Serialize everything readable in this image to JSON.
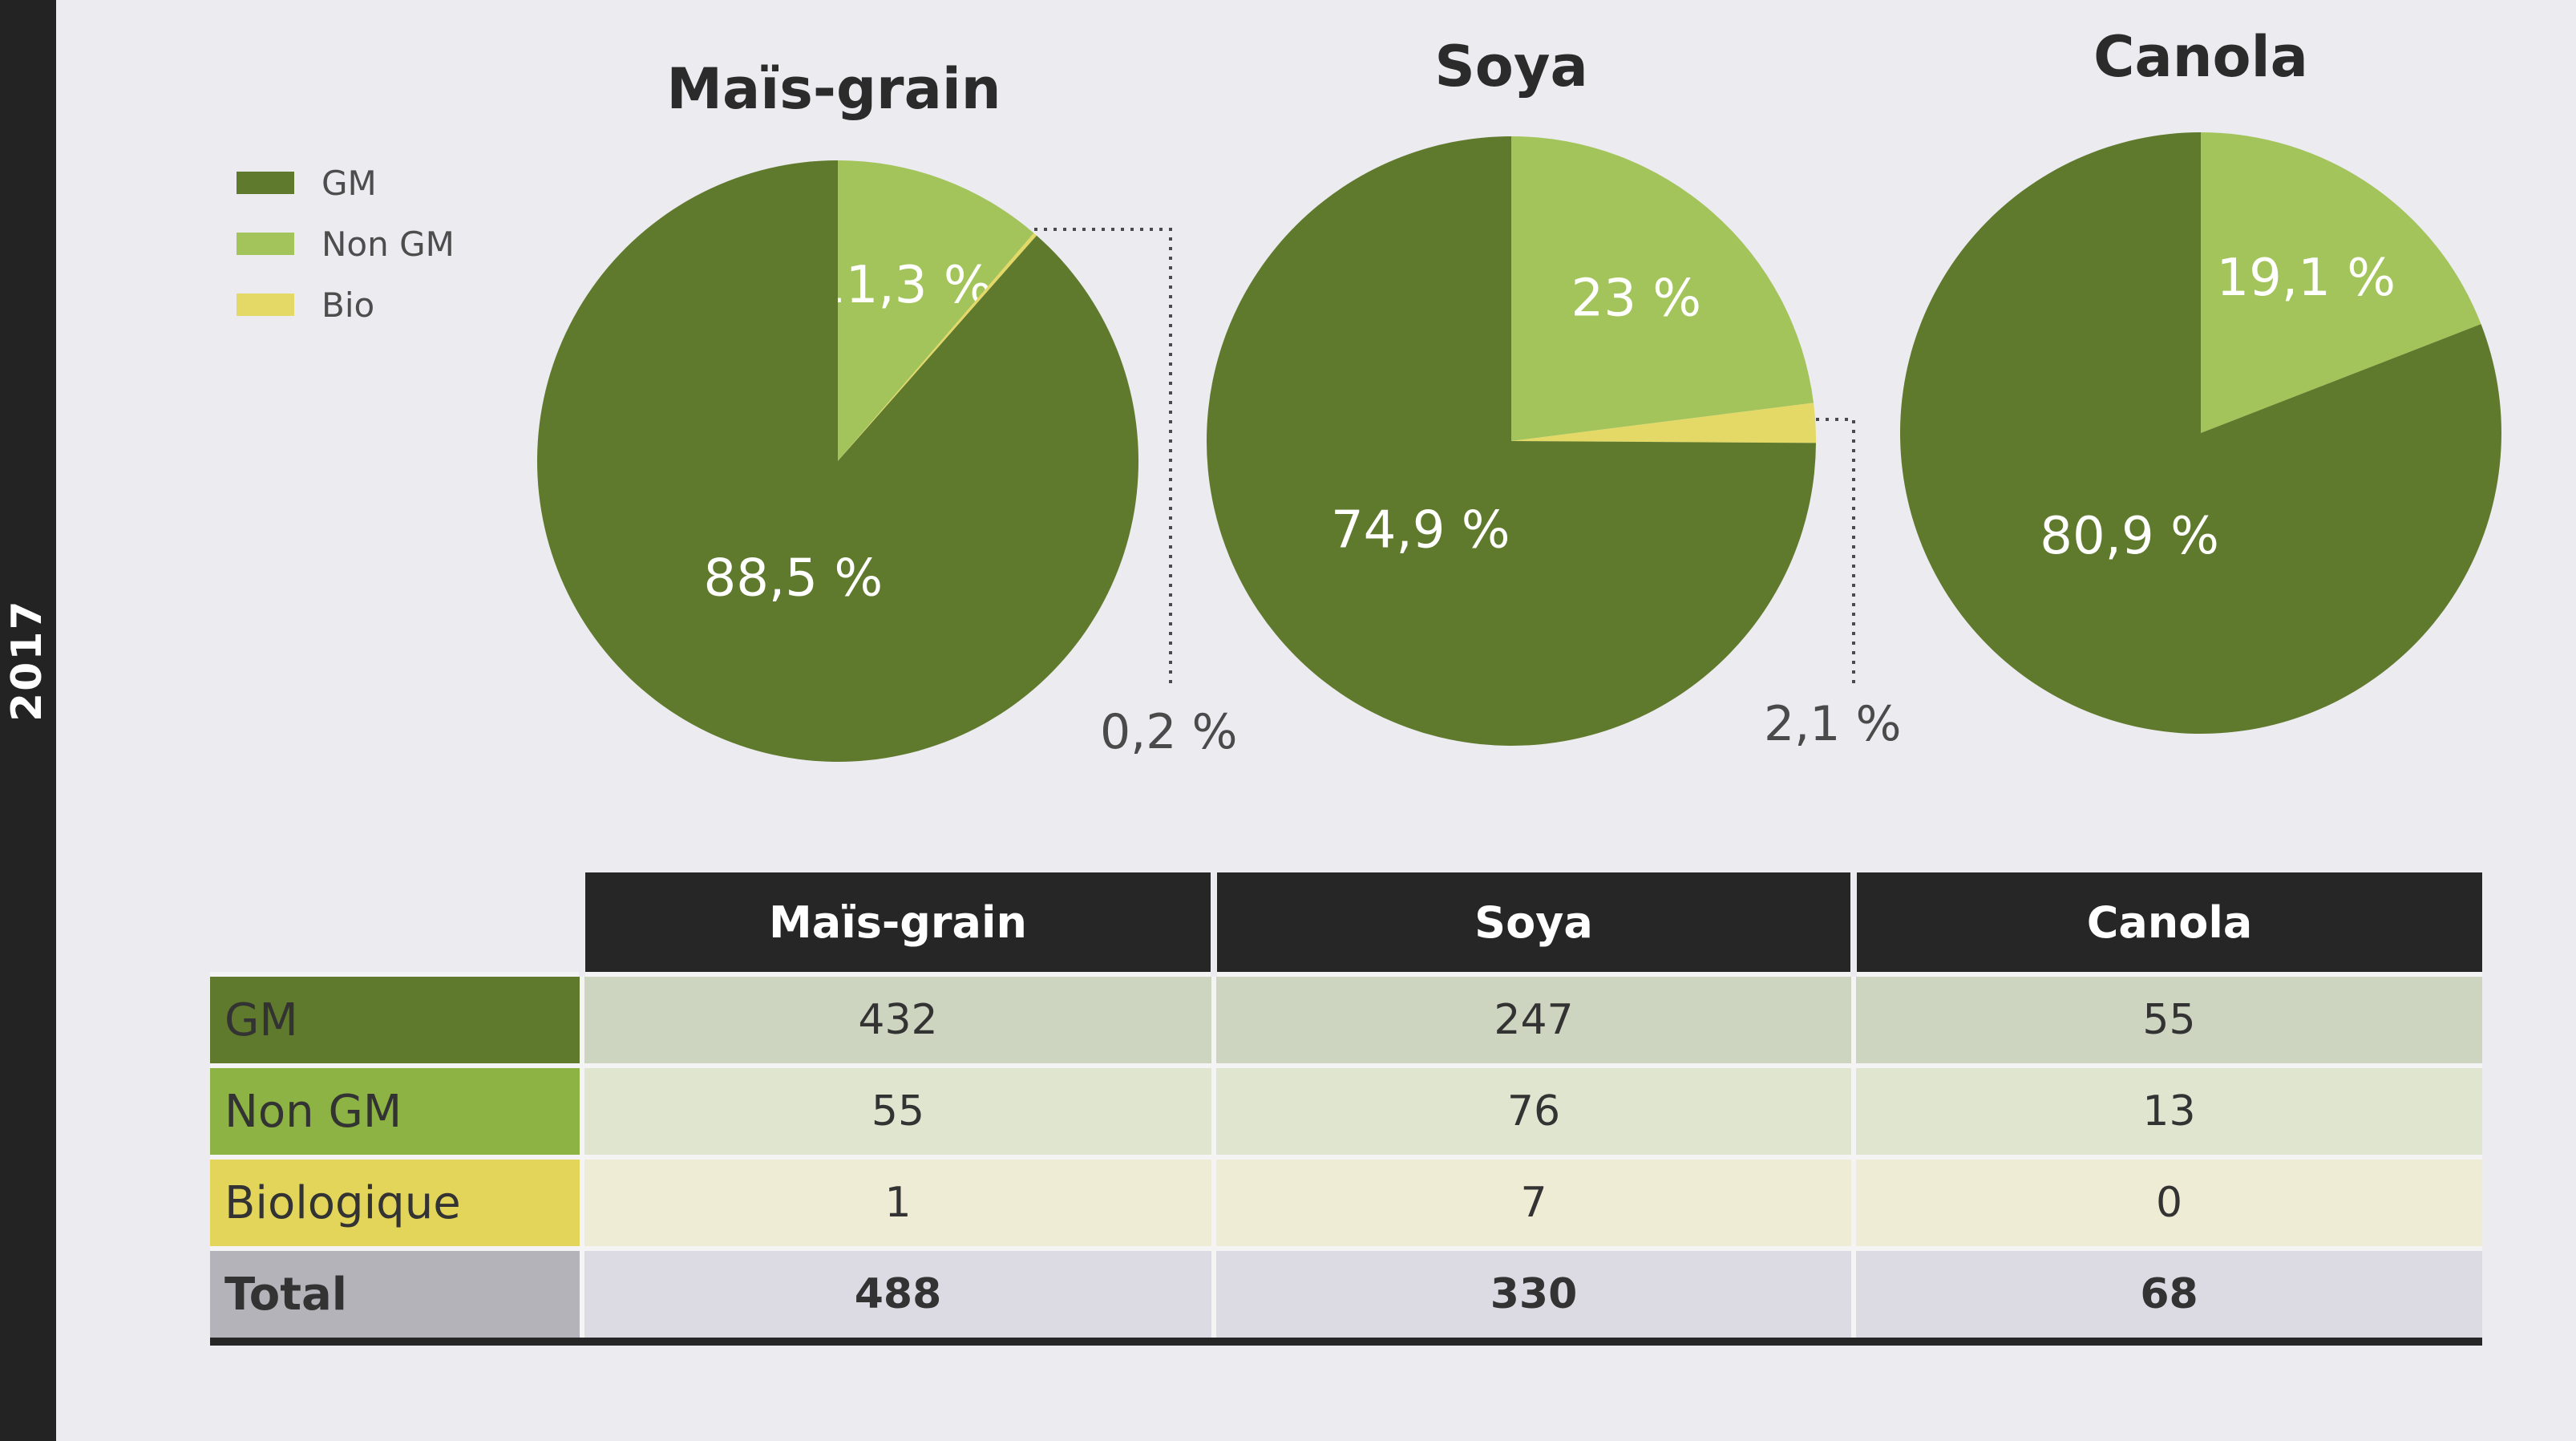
{
  "side_label": "2017",
  "colors": {
    "gm": "#5f7a2c",
    "non_gm": "#a2c45a",
    "bio": "#e4d967",
    "background": "#ecebf0"
  },
  "chart_data": [
    {
      "type": "pie",
      "title": "Maïs-grain",
      "legend_position": "left",
      "slices": [
        {
          "name": "GM",
          "value": 88.5,
          "label": "88,5 %"
        },
        {
          "name": "Non GM",
          "value": 11.3,
          "label": "11,3 %"
        },
        {
          "name": "Bio",
          "value": 0.2,
          "label": "0,2 %"
        }
      ]
    },
    {
      "type": "pie",
      "title": "Soya",
      "slices": [
        {
          "name": "GM",
          "value": 74.9,
          "label": "74,9 %"
        },
        {
          "name": "Non GM",
          "value": 23,
          "label": "23 %"
        },
        {
          "name": "Bio",
          "value": 2.1,
          "label": "2,1 %"
        }
      ]
    },
    {
      "type": "pie",
      "title": "Canola",
      "slices": [
        {
          "name": "GM",
          "value": 80.9,
          "label": "80,9 %"
        },
        {
          "name": "Non GM",
          "value": 19.1,
          "label": "19,1 %"
        }
      ]
    }
  ],
  "legend": [
    {
      "label": "GM",
      "color": "#5f7a2c"
    },
    {
      "label": "Non GM",
      "color": "#a2c45a"
    },
    {
      "label": "Bio",
      "color": "#e4d967"
    }
  ],
  "table": {
    "columns": [
      "Maïs-grain",
      "Soya",
      "Canola"
    ],
    "rows": [
      {
        "label": "GM",
        "values": [
          "432",
          "247",
          "55"
        ]
      },
      {
        "label": "Non GM",
        "values": [
          "55",
          "76",
          "13"
        ]
      },
      {
        "label": "Biologique",
        "values": [
          "1",
          "7",
          "0"
        ]
      },
      {
        "label": "Total",
        "values": [
          "488",
          "330",
          "68"
        ]
      }
    ]
  }
}
